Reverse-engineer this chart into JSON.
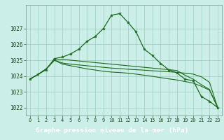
{
  "title": "Graphe pression niveau de la mer (hPa)",
  "x": [
    0,
    1,
    2,
    3,
    4,
    5,
    6,
    7,
    8,
    9,
    10,
    11,
    12,
    13,
    14,
    15,
    16,
    17,
    18,
    19,
    20,
    21,
    22,
    23
  ],
  "series1": [
    1023.8,
    1024.1,
    1024.4,
    1025.1,
    1025.2,
    1025.4,
    1025.7,
    1026.2,
    1026.5,
    1027.0,
    1027.85,
    1027.95,
    1027.4,
    1026.8,
    1025.7,
    1025.3,
    1024.8,
    1024.4,
    1024.2,
    1023.8,
    1023.7,
    1022.7,
    1022.4,
    1022.0
  ],
  "series2": [
    1023.8,
    1024.1,
    1024.45,
    1025.0,
    1024.75,
    1024.65,
    1024.55,
    1024.45,
    1024.38,
    1024.3,
    1024.25,
    1024.22,
    1024.18,
    1024.12,
    1024.05,
    1023.98,
    1023.9,
    1023.82,
    1023.75,
    1023.65,
    1023.55,
    1023.35,
    1023.1,
    1022.0
  ],
  "series3": [
    1023.8,
    1024.1,
    1024.45,
    1025.0,
    1024.82,
    1024.75,
    1024.7,
    1024.65,
    1024.6,
    1024.55,
    1024.5,
    1024.47,
    1024.43,
    1024.4,
    1024.37,
    1024.33,
    1024.3,
    1024.27,
    1024.23,
    1024.18,
    1024.12,
    1023.95,
    1023.6,
    1022.0
  ],
  "series4": [
    1023.8,
    1024.1,
    1024.45,
    1025.0,
    1025.05,
    1025.0,
    1024.95,
    1024.9,
    1024.85,
    1024.8,
    1024.75,
    1024.7,
    1024.65,
    1024.6,
    1024.55,
    1024.5,
    1024.45,
    1024.4,
    1024.35,
    1024.05,
    1023.8,
    1023.45,
    1023.15,
    1022.0
  ],
  "ylim": [
    1021.5,
    1028.5
  ],
  "yticks": [
    1022,
    1023,
    1024,
    1025,
    1026,
    1027
  ],
  "line_color": "#1a6b1a",
  "bg_color": "#cceee8",
  "grid_color": "#99ccbb",
  "title_bg": "#1a6b1a",
  "title_color": "#ffffff",
  "title_fontsize": 6.8,
  "tick_fontsize": 5.0,
  "ytick_fontsize": 5.5
}
